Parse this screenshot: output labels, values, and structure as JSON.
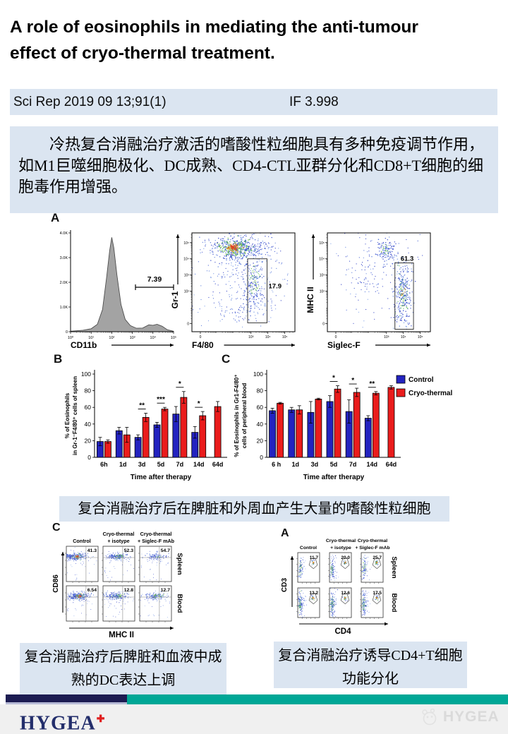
{
  "header": {
    "title_line1": " A role of eosinophils in mediating the anti-tumour",
    "title_line2": "effect of cryo-thermal treatment."
  },
  "pub_bar": {
    "citation": "Sci Rep 2019 09 13;91(1)",
    "impact_factor": "IF 3.998"
  },
  "abstract": {
    "text": "冷热复合消融治疗激活的嗜酸性粒细胞具有多种免疫调节作用，如M1巨噬细胞极化、DC成熟、CD4-CTL亚群分化和CD8+T细胞的细胞毒作用增强。"
  },
  "captions": {
    "mid": "复合消融治疗后在脾脏和外周血产生大量的嗜酸性粒细胞",
    "bottom_left": "复合消融治疗后脾脏和血液中成熟的DC表达上调",
    "bottom_right": "复合消融治疗诱导CD4+T细胞功能分化"
  },
  "footer": {
    "brand": "HYGEA",
    "brand_mark": "✚",
    "watermark": "HYGEA",
    "navy": "#1c1c52",
    "teal": "#00a796"
  },
  "colors": {
    "box_blue": "#dbe5f1",
    "bar_blue": "#2323c0",
    "bar_red": "#ea1c1c"
  },
  "chart_data": [
    {
      "id": "cd11b-histogram",
      "panel": "A",
      "type": "area",
      "xlabel": "CD11b",
      "x_ticks": [
        "10⁰",
        "10¹",
        "10²",
        "10³",
        "10⁴",
        "10⁵"
      ],
      "y_ticks": [
        "0",
        "1.0K",
        "2.0K",
        "3.0K",
        "4.0K"
      ],
      "ylim_k": [
        0,
        4
      ],
      "gate": {
        "label": "7.39",
        "y_k": 1.8,
        "x_log_from": 3.15,
        "x_log_to": 5.0
      },
      "curve_log_x_vs_k": [
        [
          0,
          0.02
        ],
        [
          0.6,
          0.06
        ],
        [
          1.0,
          0.12
        ],
        [
          1.3,
          0.3
        ],
        [
          1.55,
          0.9
        ],
        [
          1.75,
          2.2
        ],
        [
          1.9,
          3.3
        ],
        [
          2.0,
          3.82
        ],
        [
          2.1,
          3.4
        ],
        [
          2.25,
          2.3
        ],
        [
          2.45,
          1.1
        ],
        [
          2.65,
          0.5
        ],
        [
          2.9,
          0.25
        ],
        [
          3.2,
          0.14
        ],
        [
          3.5,
          0.15
        ],
        [
          3.8,
          0.28
        ],
        [
          4.0,
          0.26
        ],
        [
          4.2,
          0.3
        ],
        [
          4.45,
          0.22
        ],
        [
          4.7,
          0.08
        ],
        [
          5.0,
          0.02
        ]
      ]
    },
    {
      "id": "gr1-vs-f480",
      "panel": "A",
      "type": "scatter",
      "xlabel": "F4/80",
      "ylabel": "Gr-1",
      "x_ticks": [
        "0",
        "10³",
        "10⁴",
        "10⁵"
      ],
      "y_ticks": [
        "0",
        "10²",
        "10³",
        "10⁴",
        "10⁵"
      ],
      "gate": {
        "label": "17.9",
        "x_log": [
          2.8,
          3.95
        ],
        "y_log": [
          0.05,
          4.0
        ]
      }
    },
    {
      "id": "mhc2-vs-siglecf",
      "panel": "A",
      "type": "scatter",
      "xlabel": "Siglec-F",
      "ylabel": "MHC II",
      "x_ticks": [
        "0",
        "10³",
        "10⁴",
        "10⁵"
      ],
      "y_ticks": [
        "0",
        "10²",
        "10³",
        "10⁴",
        "10⁵"
      ],
      "gate": {
        "label": "61.3",
        "x_log": [
          3.5,
          4.6
        ],
        "y_log": [
          -0.35,
          3.75
        ]
      }
    },
    {
      "id": "spleen-eosinophil-bar",
      "panel": "B",
      "type": "bar",
      "ylabel_lines": [
        "% of Eosinophils",
        "in Gr-1⁻F4/80⁺ cells of spleen"
      ],
      "xlabel": "Time after therapy",
      "categories": [
        "6h",
        "1d",
        "3d",
        "5d",
        "7d",
        "14d",
        "64d"
      ],
      "ylim": [
        0,
        100
      ],
      "yticks": [
        0,
        20,
        40,
        60,
        80,
        100
      ],
      "series": [
        {
          "name": "Control",
          "color": "#2323c0",
          "values": [
            19,
            32,
            24,
            39,
            52,
            30,
            null
          ],
          "errors": [
            5,
            4,
            3,
            3,
            9,
            7,
            null
          ]
        },
        {
          "name": "Cryo-thermal",
          "color": "#ea1c1c",
          "values": [
            19,
            27,
            48,
            58,
            72,
            50,
            61
          ],
          "errors": [
            2,
            9,
            5,
            2,
            7,
            5,
            6
          ]
        }
      ],
      "significance": [
        "",
        "",
        "**",
        "***",
        "*",
        "*",
        ""
      ]
    },
    {
      "id": "blood-eosinophil-bar",
      "panel": "C",
      "type": "bar",
      "ylabel_lines": [
        "% of Eosinophils in Gr1-F4/80⁺",
        "cells of peripheral blood"
      ],
      "xlabel": "Time after therapy",
      "categories": [
        "6 h",
        "1d",
        "3d",
        "5d",
        "7d",
        "14d",
        "64d"
      ],
      "ylim": [
        0,
        100
      ],
      "yticks": [
        0,
        20,
        40,
        60,
        80,
        100
      ],
      "series": [
        {
          "name": "Control",
          "color": "#2323c0",
          "values": [
            56,
            57,
            54,
            67,
            55,
            47,
            null
          ],
          "errors": [
            3,
            3,
            13,
            7,
            14,
            3,
            null
          ]
        },
        {
          "name": "Cryo-thermal",
          "color": "#ea1c1c",
          "values": [
            65,
            57,
            70,
            82,
            78,
            77,
            84
          ],
          "errors": [
            1,
            5,
            1,
            4,
            5,
            2,
            2
          ]
        }
      ],
      "significance": [
        "",
        "",
        "",
        "*",
        "*",
        "**",
        ""
      ],
      "legend": [
        "Control",
        "Cryo-thermal"
      ]
    },
    {
      "id": "dc-maturation-flow",
      "panel": "C",
      "type": "scatter-grid",
      "style": "quad",
      "columns": [
        [
          "Control"
        ],
        [
          "Cryo-thermal",
          "+ isotype"
        ],
        [
          "Cryo-thermal",
          "+ Siglec-F mAb"
        ]
      ],
      "rows": [
        "Spleen",
        "Blood"
      ],
      "xlabel": "MHC II",
      "ylabel": "CD86",
      "values": [
        [
          "41.3",
          "52.3",
          "54.7"
        ],
        [
          "6.54",
          "12.8",
          "12.7"
        ]
      ]
    },
    {
      "id": "cd4-t-flow",
      "panel": "A",
      "type": "scatter-grid",
      "style": "gate",
      "columns": [
        [
          "Control"
        ],
        [
          "Cryo-thermal",
          "+ isotype"
        ],
        [
          "Cryo-thermal",
          "+ Siglec-F mAb"
        ]
      ],
      "rows": [
        "Spleen",
        "Blood"
      ],
      "xlabel": "CD4",
      "ylabel": "CD3",
      "values": [
        [
          "11.7",
          "20.0",
          "25.7"
        ],
        [
          "13.2",
          "12.6",
          "17.5"
        ]
      ]
    }
  ]
}
